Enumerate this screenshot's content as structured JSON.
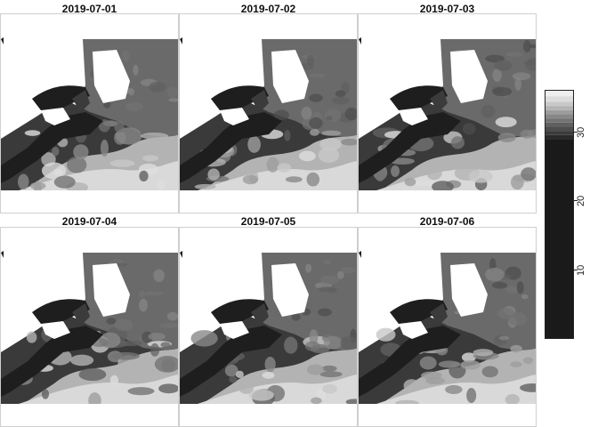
{
  "panels": [
    {
      "title": "2019-07-01"
    },
    {
      "title": "2019-07-02"
    },
    {
      "title": "2019-07-03"
    },
    {
      "title": "2019-07-04"
    },
    {
      "title": "2019-07-05"
    },
    {
      "title": "2019-07-06"
    }
  ],
  "legend": {
    "ticks": [
      "10",
      "20",
      "30"
    ],
    "tick_values": [
      10,
      20,
      30
    ],
    "range": [
      0,
      36
    ],
    "palette": [
      "#1a1a1a",
      "#2a2a2a",
      "#3b3b3b",
      "#4d4d4d",
      "#606060",
      "#737373",
      "#888888",
      "#9d9d9d",
      "#b3b3b3",
      "#c8c8c8",
      "#dddddd",
      "#eeeeee"
    ]
  },
  "colors": {
    "land": "#ffffff",
    "coast_dark": "#1e1e1e",
    "shelf": "#3a3a3a",
    "offshore_mid": "#6a6a6a",
    "gulf_stream": "#d9d9d9",
    "frame": "#cfcfcf"
  }
}
